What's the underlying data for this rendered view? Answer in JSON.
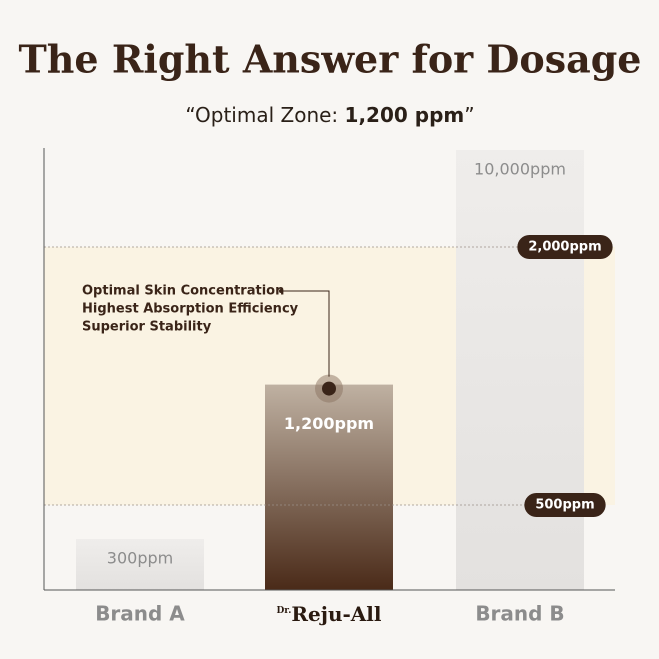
{
  "chart_data": {
    "type": "bar",
    "title": "The Right Answer for Dosage",
    "subtitle": [
      "“Optimal Zone: ",
      "1,200 ppm",
      "”"
    ],
    "categories": [
      "Brand A",
      null,
      "Brand B"
    ],
    "brand_logo": {
      "prefix": "Dr.",
      "name": "Reju-All"
    },
    "values": [
      300,
      1200,
      10000
    ],
    "value_labels": [
      "300ppm",
      "1,200ppm",
      "10,000ppm"
    ],
    "colors": [
      [
        "#efedeb",
        "#e3e1df"
      ],
      [
        "#bfb1a2",
        "#4a2a18"
      ],
      [
        "#efedeb",
        "#e3e1df"
      ]
    ],
    "ylim": [
      0,
      10000
    ],
    "reference_lines": [
      {
        "value": 2000,
        "label": "2,000ppm"
      },
      {
        "value": 500,
        "label": "500ppm"
      }
    ],
    "annotation": [
      "Optimal Skin Concentration",
      "Highest Absorption Efficiency",
      "Superior Stability"
    ]
  }
}
